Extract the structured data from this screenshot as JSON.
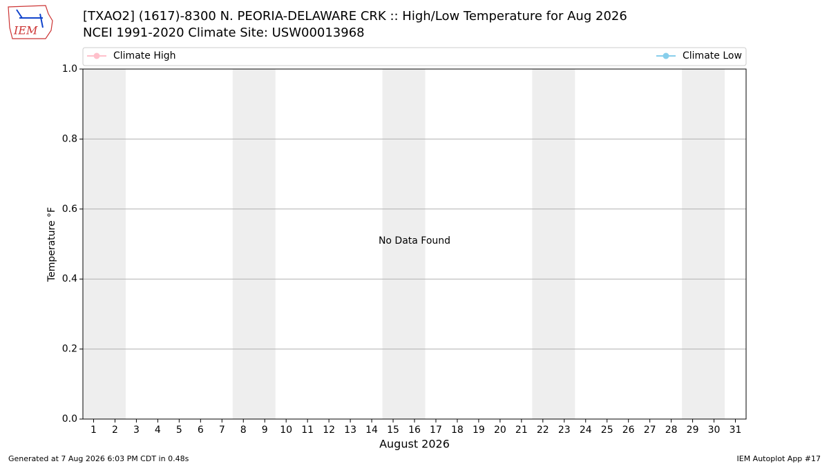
{
  "chart_data": {
    "type": "line",
    "title": "[TXAO2] (1617)-8300 N. PEORIA-DELAWARE CRK :: High/Low Temperature for Aug 2026",
    "subtitle": "NCEI 1991-2020 Climate Site: USW00013968",
    "logo_text": "IEM",
    "x": [
      1,
      2,
      3,
      4,
      5,
      6,
      7,
      8,
      9,
      10,
      11,
      12,
      13,
      14,
      15,
      16,
      17,
      18,
      19,
      20,
      21,
      22,
      23,
      24,
      25,
      26,
      27,
      28,
      29,
      30,
      31
    ],
    "xlim": [
      0.5,
      31.5
    ],
    "xticks": [
      1,
      2,
      3,
      4,
      5,
      6,
      7,
      8,
      9,
      10,
      11,
      12,
      13,
      14,
      15,
      16,
      17,
      18,
      19,
      20,
      21,
      22,
      23,
      24,
      25,
      26,
      27,
      28,
      29,
      30,
      31
    ],
    "xlabel": "August 2026",
    "ylabel": "Temperature °F",
    "ylim": [
      0,
      1
    ],
    "yticks": [
      {
        "value": 0,
        "label": "0.0"
      },
      {
        "value": 0.2,
        "label": "0.2"
      },
      {
        "value": 0.4,
        "label": "0.4"
      },
      {
        "value": 0.6,
        "label": "0.6"
      },
      {
        "value": 0.8,
        "label": "0.8"
      },
      {
        "value": 1,
        "label": "1.0"
      }
    ],
    "grid": true,
    "weekend_bands": [
      [
        0.5,
        2.5
      ],
      [
        7.5,
        9.5
      ],
      [
        14.5,
        16.5
      ],
      [
        21.5,
        23.5
      ],
      [
        28.5,
        30.5
      ]
    ],
    "band_color": "#eeeeee",
    "series": [
      {
        "name": "Climate High",
        "color": "#ffc0cb",
        "values": [
          null,
          null,
          null,
          null,
          null,
          null,
          null,
          null,
          null,
          null,
          null,
          null,
          null,
          null,
          null,
          null,
          null,
          null,
          null,
          null,
          null,
          null,
          null,
          null,
          null,
          null,
          null,
          null,
          null,
          null,
          null
        ]
      },
      {
        "name": "Climate Low",
        "color": "#87ceeb",
        "values": [
          null,
          null,
          null,
          null,
          null,
          null,
          null,
          null,
          null,
          null,
          null,
          null,
          null,
          null,
          null,
          null,
          null,
          null,
          null,
          null,
          null,
          null,
          null,
          null,
          null,
          null,
          null,
          null,
          null,
          null,
          null
        ]
      }
    ],
    "annotation": "No Data Found",
    "footer_left": "Generated at 7 Aug 2026 6:03 PM CDT in 0.48s",
    "footer_right": "IEM Autoplot App #17"
  }
}
